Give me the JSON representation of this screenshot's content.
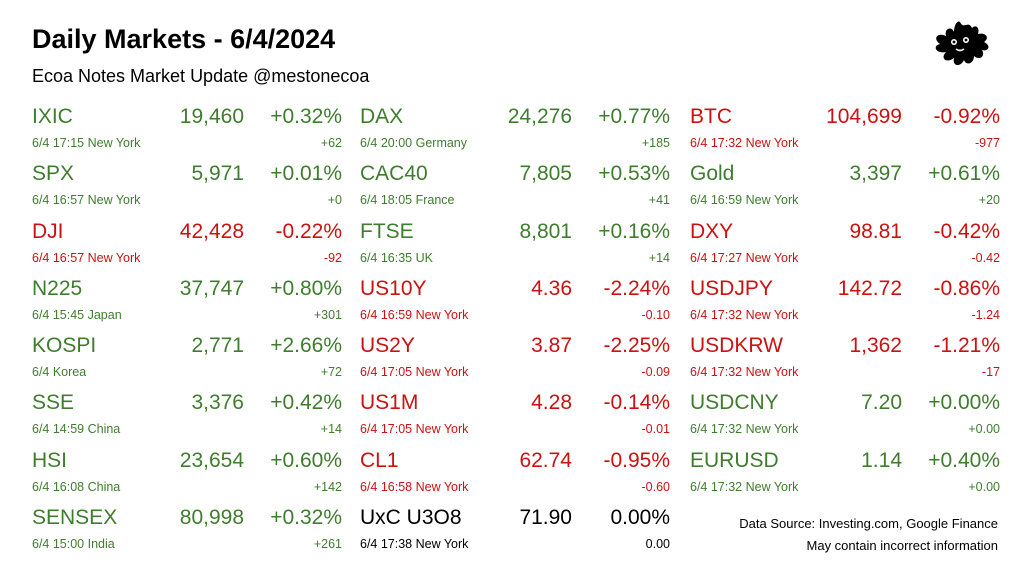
{
  "header": {
    "title": "Daily Markets - 6/4/2024",
    "subtitle": "Ecoa Notes Market Update @mestonecoa"
  },
  "logo": {
    "icon": "splat-logo-icon",
    "color": "#000000"
  },
  "colors": {
    "up": "#3f7d2e",
    "down": "#cc1111",
    "flat": "#000000"
  },
  "columns": [
    [
      {
        "name": "IXIC",
        "price": "19,460",
        "pct": "+0.32%",
        "meta": "6/4 17:15 New York",
        "chg": "+62",
        "trend": "up"
      },
      {
        "name": "SPX",
        "price": "5,971",
        "pct": "+0.01%",
        "meta": "6/4 16:57 New York",
        "chg": "+0",
        "trend": "up"
      },
      {
        "name": "DJI",
        "price": "42,428",
        "pct": "-0.22%",
        "meta": "6/4 16:57 New York",
        "chg": "-92",
        "trend": "down"
      },
      {
        "name": "N225",
        "price": "37,747",
        "pct": "+0.80%",
        "meta": "6/4 15:45 Japan",
        "chg": "+301",
        "trend": "up"
      },
      {
        "name": "KOSPI",
        "price": "2,771",
        "pct": "+2.66%",
        "meta": "6/4  Korea",
        "chg": "+72",
        "trend": "up"
      },
      {
        "name": "SSE",
        "price": "3,376",
        "pct": "+0.42%",
        "meta": "6/4 14:59 China",
        "chg": "+14",
        "trend": "up"
      },
      {
        "name": "HSI",
        "price": "23,654",
        "pct": "+0.60%",
        "meta": "6/4 16:08 China",
        "chg": "+142",
        "trend": "up"
      },
      {
        "name": "SENSEX",
        "price": "80,998",
        "pct": "+0.32%",
        "meta": "6/4 15:00 India",
        "chg": "+261",
        "trend": "up"
      }
    ],
    [
      {
        "name": "DAX",
        "price": "24,276",
        "pct": "+0.77%",
        "meta": "6/4 20:00 Germany",
        "chg": "+185",
        "trend": "up"
      },
      {
        "name": "CAC40",
        "price": "7,805",
        "pct": "+0.53%",
        "meta": "6/4 18:05 France",
        "chg": "+41",
        "trend": "up"
      },
      {
        "name": "FTSE",
        "price": "8,801",
        "pct": "+0.16%",
        "meta": "6/4 16:35 UK",
        "chg": "+14",
        "trend": "up"
      },
      {
        "name": "US10Y",
        "price": "4.36",
        "pct": "-2.24%",
        "meta": "6/4 16:59 New York",
        "chg": "-0.10",
        "trend": "down"
      },
      {
        "name": "US2Y",
        "price": "3.87",
        "pct": "-2.25%",
        "meta": "6/4 17:05 New York",
        "chg": "-0.09",
        "trend": "down"
      },
      {
        "name": "US1M",
        "price": "4.28",
        "pct": "-0.14%",
        "meta": "6/4 17:05 New York",
        "chg": "-0.01",
        "trend": "down"
      },
      {
        "name": "CL1",
        "price": "62.74",
        "pct": "-0.95%",
        "meta": "6/4 16:58 New York",
        "chg": "-0.60",
        "trend": "down"
      },
      {
        "name": "UxC U3O8",
        "price": "71.90",
        "pct": "0.00%",
        "meta": "6/4 17:38 New York",
        "chg": "0.00",
        "trend": "flat"
      }
    ],
    [
      {
        "name": "BTC",
        "price": "104,699",
        "pct": "-0.92%",
        "meta": "6/4 17:32 New York",
        "chg": "-977",
        "trend": "down"
      },
      {
        "name": "Gold",
        "price": "3,397",
        "pct": "+0.61%",
        "meta": "6/4 16:59 New York",
        "chg": "+20",
        "trend": "up"
      },
      {
        "name": "DXY",
        "price": "98.81",
        "pct": "-0.42%",
        "meta": "6/4 17:27 New York",
        "chg": "-0.42",
        "trend": "down"
      },
      {
        "name": "USDJPY",
        "price": "142.72",
        "pct": "-0.86%",
        "meta": "6/4 17:32 New York",
        "chg": "-1.24",
        "trend": "down"
      },
      {
        "name": "USDKRW",
        "price": "1,362",
        "pct": "-1.21%",
        "meta": "6/4 17:32 New York",
        "chg": "-17",
        "trend": "down"
      },
      {
        "name": "USDCNY",
        "price": "7.20",
        "pct": "+0.00%",
        "meta": "6/4 17:32 New York",
        "chg": "+0.00",
        "trend": "up"
      },
      {
        "name": "EURUSD",
        "price": "1.14",
        "pct": "+0.40%",
        "meta": "6/4 17:32 New York",
        "chg": "+0.00",
        "trend": "up"
      }
    ]
  ],
  "footer": {
    "source": "Data Source: Investing.com, Google Finance",
    "disclaimer": "May contain incorrect information"
  }
}
